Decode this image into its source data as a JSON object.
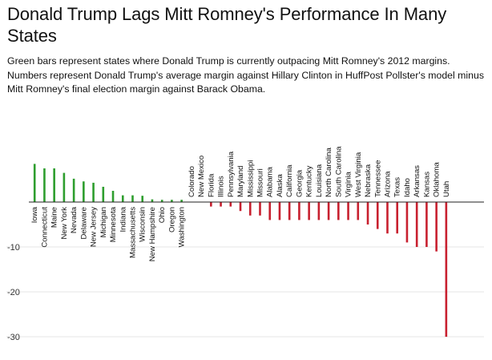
{
  "chart_data": {
    "type": "bar",
    "title": "Donald Trump Lags Mitt Romney's Performance In Many States",
    "subtitle": "Green bars represent states where Donald Trump is currently outpacing Mitt Romney's 2012 margins. Numbers represent Donald Trump's average margin against Hillary Clinton in HuffPost Pollster's model minus Mitt Romney's final election margin against Barack Obama.",
    "xlabel": "",
    "ylabel": "",
    "ylim": [
      -30,
      10
    ],
    "yticks": [
      -10,
      -20,
      -30
    ],
    "grid": true,
    "legend": "none",
    "colors": {
      "positive": "#2e9e2e",
      "negative": "#c8202f",
      "axis": "#222222",
      "grid": "#e6e6e6"
    },
    "categories": [
      "Iowa",
      "Connecticut",
      "Maine",
      "New York",
      "Nevada",
      "Delaware",
      "New Jersey",
      "Michigan",
      "Minnesota",
      "Indiana",
      "Massachusetts",
      "Wisconsin",
      "New Hampshire",
      "Ohio",
      "Oregon",
      "Washington",
      "Colorado",
      "New Mexico",
      "Florida",
      "Illinois",
      "Pennsylvania",
      "Maryland",
      "Mississippi",
      "Missouri",
      "Alabama",
      "Alaska",
      "California",
      "Georgia",
      "Kentucky",
      "Louisiana",
      "North Carolina",
      "South Carolina",
      "Virginia",
      "West Virginia",
      "Nebraska",
      "Tennessee",
      "Arizona",
      "Texas",
      "Idaho",
      "Arkansas",
      "Kansas",
      "Oklahoma",
      "Utah"
    ],
    "values": [
      8.5,
      7.5,
      7.5,
      6.5,
      5.2,
      4.6,
      4.3,
      3.4,
      2.5,
      1.5,
      1.5,
      1.4,
      0.6,
      0.5,
      0.5,
      0.5,
      0,
      0,
      -1,
      -1,
      -1,
      -2,
      -3,
      -3,
      -4,
      -4,
      -4,
      -4,
      -4,
      -4,
      -4,
      -4,
      -4,
      -4,
      -5,
      -6,
      -7,
      -7,
      -9,
      -10,
      -10,
      -11,
      -30
    ]
  }
}
